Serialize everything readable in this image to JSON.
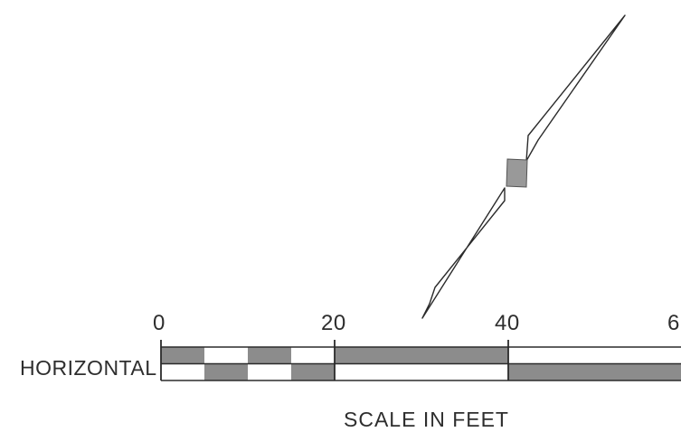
{
  "scale": {
    "tick_labels": [
      "0",
      "20",
      "40",
      "6"
    ],
    "row_label": "HORIZONTAL",
    "caption": "SCALE IN FEET"
  },
  "colors": {
    "line": "#2b2b2b",
    "dark_fill": "#8c8c8c",
    "light_fill": "#ffffff",
    "marker_fill": "#999999"
  }
}
